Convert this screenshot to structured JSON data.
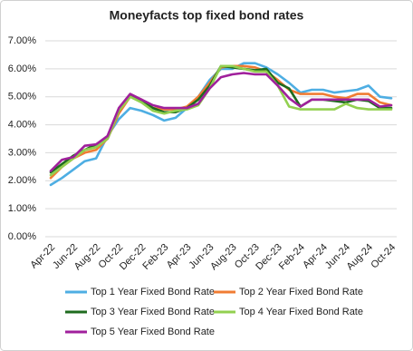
{
  "chart_data": {
    "type": "line",
    "title": "Moneyfacts top fixed bond rates",
    "categories": [
      "Apr-22",
      null,
      "Jun-22",
      null,
      "Aug-22",
      null,
      "Oct-22",
      null,
      "Dec-22",
      null,
      "Feb-23",
      null,
      "Apr-23",
      null,
      "Jun-23",
      null,
      "Aug-23",
      null,
      "Oct-23",
      null,
      "Dec-23",
      null,
      "Feb-24",
      null,
      "Apr-24",
      null,
      "Jun-24",
      null,
      "Aug-24",
      null,
      "Oct-24"
    ],
    "series": [
      {
        "name": "Top 1 Year Fixed Bond Rate",
        "color": "#4eaee3",
        "values": [
          1.85,
          2.1,
          2.4,
          2.7,
          2.8,
          3.6,
          4.2,
          4.6,
          4.5,
          4.35,
          4.15,
          4.25,
          4.6,
          5.0,
          5.6,
          6.0,
          6.0,
          6.2,
          6.2,
          6.05,
          5.8,
          5.5,
          5.15,
          5.25,
          5.25,
          5.15,
          5.2,
          5.25,
          5.4,
          5.0,
          4.95
        ]
      },
      {
        "name": "Top 2 Year Fixed Bond Rate",
        "color": "#f07c33",
        "values": [
          2.1,
          2.5,
          2.8,
          3.0,
          3.1,
          3.5,
          4.4,
          5.0,
          4.9,
          4.6,
          4.55,
          4.55,
          4.65,
          5.0,
          5.5,
          6.05,
          6.1,
          6.1,
          6.05,
          5.9,
          5.6,
          5.25,
          5.1,
          5.1,
          5.1,
          5.0,
          4.95,
          5.1,
          5.1,
          4.8,
          4.7
        ]
      },
      {
        "name": "Top 3 Year Fixed Bond Rate",
        "color": "#1e6b1e",
        "values": [
          2.3,
          2.6,
          2.9,
          3.1,
          3.3,
          3.5,
          4.5,
          5.05,
          4.85,
          4.6,
          4.45,
          4.45,
          4.6,
          4.9,
          5.4,
          6.1,
          6.05,
          6.0,
          5.95,
          6.0,
          5.5,
          5.3,
          4.65,
          4.9,
          4.9,
          4.85,
          4.8,
          4.9,
          4.85,
          4.6,
          4.6
        ]
      },
      {
        "name": "Top 4 Year Fixed Bond Rate",
        "color": "#92d050",
        "values": [
          2.2,
          2.5,
          2.8,
          3.1,
          3.2,
          3.5,
          4.5,
          5.0,
          4.8,
          4.5,
          4.4,
          4.5,
          4.55,
          4.7,
          5.3,
          6.1,
          6.1,
          6.0,
          5.9,
          5.9,
          5.4,
          4.65,
          4.55,
          4.55,
          4.55,
          4.55,
          4.75,
          4.6,
          4.55,
          4.55,
          4.55
        ]
      },
      {
        "name": "Top 5 Year Fixed Bond Rate",
        "color": "#a0209c",
        "values": [
          2.35,
          2.75,
          2.85,
          3.25,
          3.3,
          3.6,
          4.6,
          5.1,
          4.9,
          4.7,
          4.6,
          4.6,
          4.6,
          4.75,
          5.3,
          5.7,
          5.8,
          5.85,
          5.8,
          5.8,
          5.4,
          4.95,
          4.65,
          4.9,
          4.9,
          4.9,
          4.9,
          4.9,
          4.9,
          4.65,
          4.7
        ]
      }
    ],
    "ylim": [
      0,
      7
    ],
    "yticks": [
      {
        "value": 0,
        "label": "0.00%"
      },
      {
        "value": 1,
        "label": "1.00%"
      },
      {
        "value": 2,
        "label": "2.00%"
      },
      {
        "value": 3,
        "label": "3.00%"
      },
      {
        "value": 4,
        "label": "4.00%"
      },
      {
        "value": 5,
        "label": "5.00%"
      },
      {
        "value": 6,
        "label": "6.00%"
      },
      {
        "value": 7,
        "label": "7.00%"
      }
    ],
    "grid": true,
    "legend": "bottom"
  }
}
